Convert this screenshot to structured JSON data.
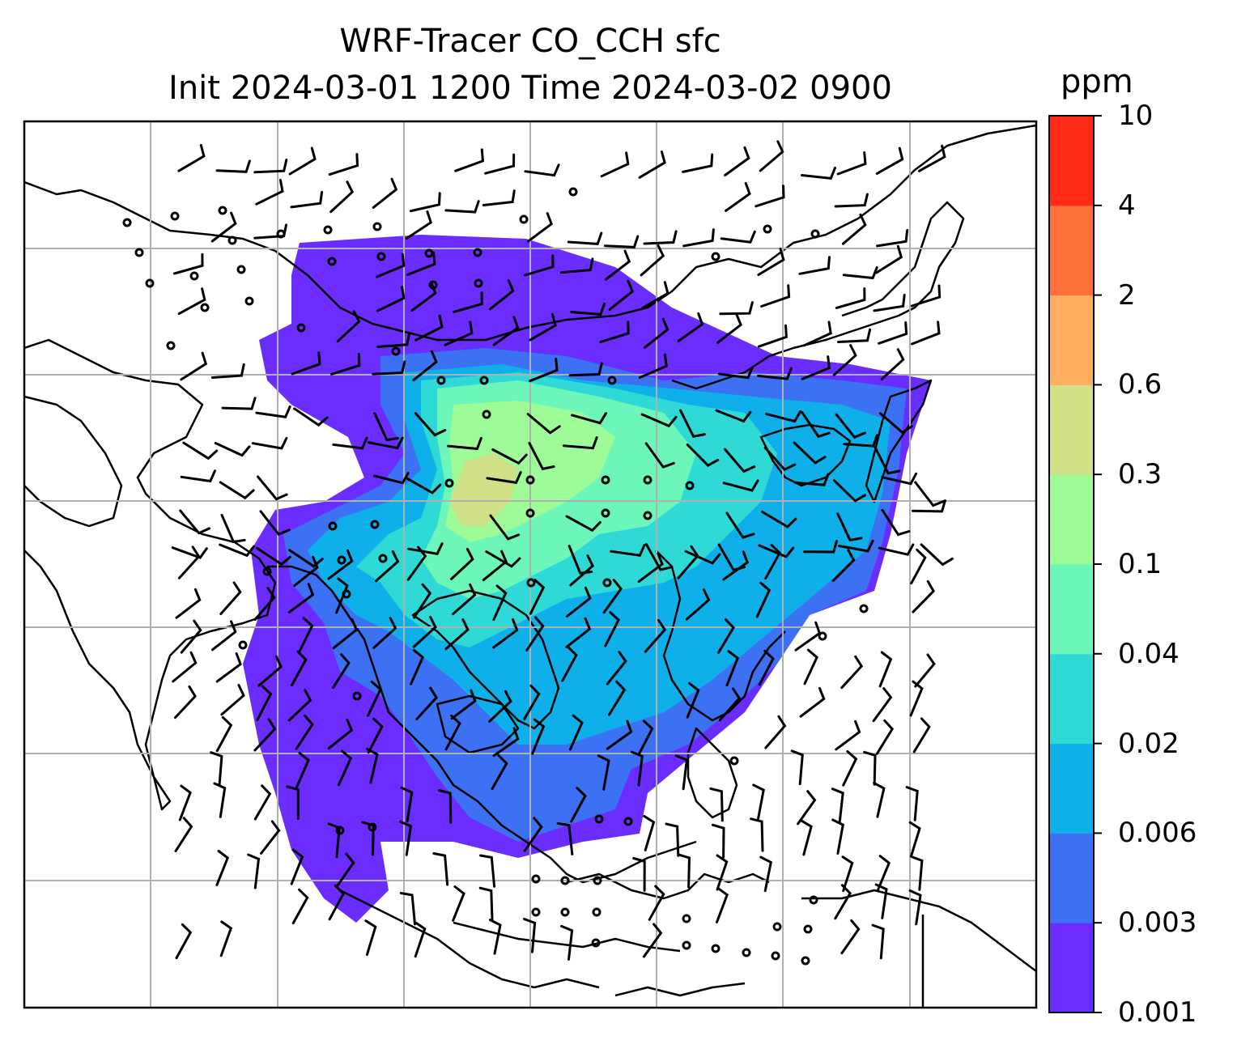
{
  "title": {
    "line1": "WRF-Tracer CO_CCH sfc",
    "line2": "Init 2024-03-01 1200 Time 2024-03-02 0900"
  },
  "colorbar": {
    "unit": "ppm",
    "levels": [
      "0.001",
      "0.003",
      "0.006",
      "0.02",
      "0.04",
      "0.1",
      "0.3",
      "0.6",
      "2",
      "4",
      "10"
    ],
    "colors": [
      "#6a2cff",
      "#3b71f2",
      "#0fb0ea",
      "#2fdad6",
      "#6df6b9",
      "#9dfb98",
      "#cfe087",
      "#ffae5f",
      "#ff713a",
      "#ff2b17"
    ]
  },
  "map": {
    "background": "#ffffff",
    "gridline_color": "#b0b0b0",
    "coastline_color": "#000000",
    "overlay": "wind barbs and calm circles",
    "shading_field": "CO_CCH tracer surface concentration"
  }
}
